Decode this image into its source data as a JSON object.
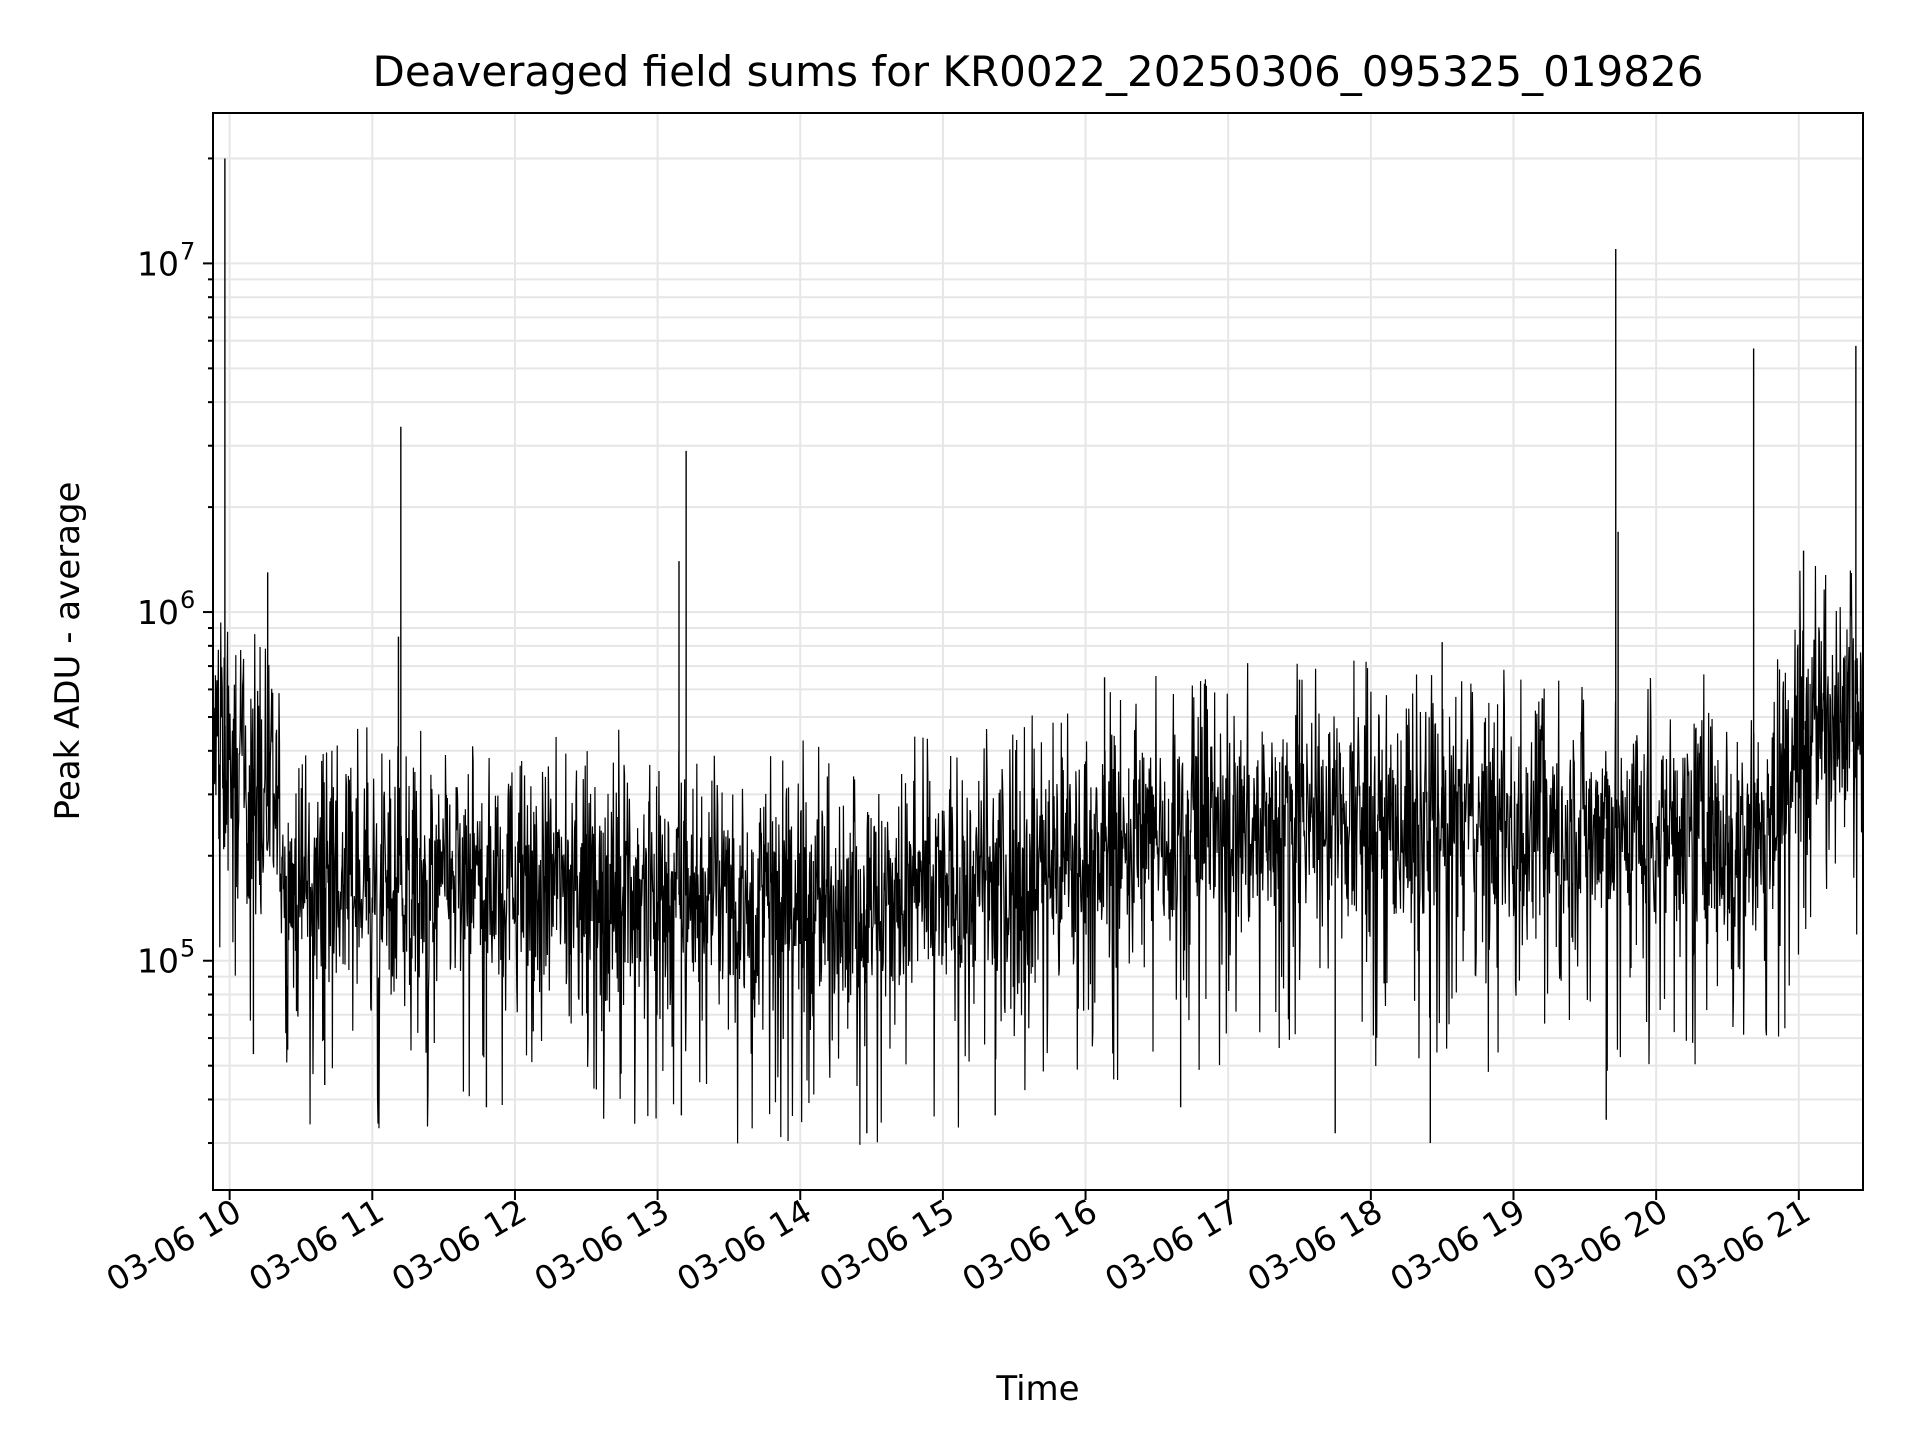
{
  "chart_data": {
    "type": "line",
    "title": "Deaveraged field sums for KR0022_20250306_095325_019826",
    "xlabel": "Time",
    "ylabel": "Peak ADU - average",
    "yscale": "log",
    "ylim": [
      22000,
      27000000
    ],
    "xlim": [
      "2025-03-06T09:53",
      "2025-03-06T21:27"
    ],
    "x_ticks": [
      {
        "label": "03-06 10",
        "time": "2025-03-06T10:00"
      },
      {
        "label": "03-06 11",
        "time": "2025-03-06T11:00"
      },
      {
        "label": "03-06 12",
        "time": "2025-03-06T12:00"
      },
      {
        "label": "03-06 13",
        "time": "2025-03-06T13:00"
      },
      {
        "label": "03-06 14",
        "time": "2025-03-06T14:00"
      },
      {
        "label": "03-06 15",
        "time": "2025-03-06T15:00"
      },
      {
        "label": "03-06 16",
        "time": "2025-03-06T16:00"
      },
      {
        "label": "03-06 17",
        "time": "2025-03-06T17:00"
      },
      {
        "label": "03-06 18",
        "time": "2025-03-06T18:00"
      },
      {
        "label": "03-06 19",
        "time": "2025-03-06T19:00"
      },
      {
        "label": "03-06 20",
        "time": "2025-03-06T20:00"
      },
      {
        "label": "03-06 21",
        "time": "2025-03-06T21:00"
      }
    ],
    "y_ticks": [
      {
        "base": "10",
        "exp": "5",
        "value": 100000
      },
      {
        "base": "10",
        "exp": "6",
        "value": 1000000
      },
      {
        "base": "10",
        "exp": "7",
        "value": 10000000
      }
    ],
    "grid": true,
    "line_color": "#000000",
    "trend": [
      {
        "time": "2025-03-06T09:53",
        "value": 400000
      },
      {
        "time": "2025-03-06T10:20",
        "value": 260000
      },
      {
        "time": "2025-03-06T10:25",
        "value": 160000
      },
      {
        "time": "2025-03-06T12:00",
        "value": 170000
      },
      {
        "time": "2025-03-06T13:30",
        "value": 150000
      },
      {
        "time": "2025-03-06T14:30",
        "value": 145000
      },
      {
        "time": "2025-03-06T15:30",
        "value": 170000
      },
      {
        "time": "2025-03-06T16:30",
        "value": 230000
      },
      {
        "time": "2025-03-06T17:30",
        "value": 250000
      },
      {
        "time": "2025-03-06T18:30",
        "value": 240000
      },
      {
        "time": "2025-03-06T19:30",
        "value": 240000
      },
      {
        "time": "2025-03-06T20:50",
        "value": 240000
      },
      {
        "time": "2025-03-06T21:00",
        "value": 450000
      },
      {
        "time": "2025-03-06T21:27",
        "value": 600000
      }
    ],
    "peaks": [
      {
        "time": "2025-03-06T09:58",
        "value": 20000000
      },
      {
        "time": "2025-03-06T10:16",
        "value": 1300000
      },
      {
        "time": "2025-03-06T11:12",
        "value": 3400000
      },
      {
        "time": "2025-03-06T11:11",
        "value": 850000
      },
      {
        "time": "2025-03-06T13:09",
        "value": 1400000
      },
      {
        "time": "2025-03-06T13:12",
        "value": 2900000
      },
      {
        "time": "2025-03-06T16:08",
        "value": 650000
      },
      {
        "time": "2025-03-06T17:30",
        "value": 640000
      },
      {
        "time": "2025-03-06T18:30",
        "value": 820000
      },
      {
        "time": "2025-03-06T19:43",
        "value": 11000000
      },
      {
        "time": "2025-03-06T19:44",
        "value": 1700000
      },
      {
        "time": "2025-03-06T20:41",
        "value": 5700000
      },
      {
        "time": "2025-03-06T21:02",
        "value": 1500000
      },
      {
        "time": "2025-03-06T21:24",
        "value": 5800000
      }
    ],
    "dips": [
      {
        "time": "2025-03-06T10:10",
        "value": 54000
      },
      {
        "time": "2025-03-06T10:40",
        "value": 44000
      },
      {
        "time": "2025-03-06T11:48",
        "value": 38000
      },
      {
        "time": "2025-03-06T13:10",
        "value": 36000
      },
      {
        "time": "2025-03-06T14:28",
        "value": 32000
      },
      {
        "time": "2025-03-06T15:22",
        "value": 36000
      },
      {
        "time": "2025-03-06T16:40",
        "value": 38000
      },
      {
        "time": "2025-03-06T17:45",
        "value": 32000
      },
      {
        "time": "2025-03-06T18:25",
        "value": 30000
      },
      {
        "time": "2025-03-06T19:39",
        "value": 35000
      }
    ]
  }
}
